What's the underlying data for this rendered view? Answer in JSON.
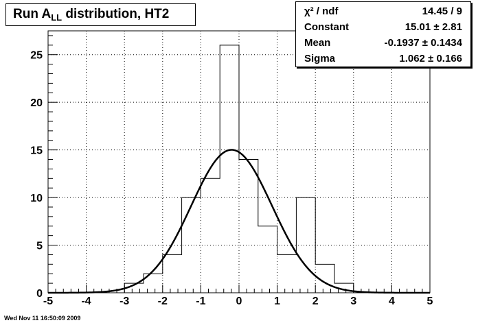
{
  "title": {
    "prefix": "Run A",
    "sub": "LL",
    "suffix": " distribution, HT2"
  },
  "stats": [
    {
      "label": "χ² / ndf",
      "value": "14.45 / 9"
    },
    {
      "label": "Constant",
      "value": "15.01 ± 2.81"
    },
    {
      "label": "Mean",
      "value": "-0.1937 ± 0.1434"
    },
    {
      "label": "Sigma",
      "value": "1.062 ± 0.166"
    }
  ],
  "footer": "Wed Nov 11 16:50:09 2009",
  "chart_data": {
    "type": "bar",
    "xlim": [
      -5,
      5
    ],
    "ylim": [
      0,
      27.5
    ],
    "x_ticks": [
      -5,
      -4,
      -3,
      -2,
      -1,
      0,
      1,
      2,
      3,
      4,
      5
    ],
    "y_ticks": [
      0,
      5,
      10,
      15,
      20,
      25
    ],
    "grid": true,
    "bin_width": 0.5,
    "bin_edges": [
      -5,
      -4.5,
      -4,
      -3.5,
      -3,
      -2.5,
      -2,
      -1.5,
      -1,
      -0.5,
      0,
      0.5,
      1,
      1.5,
      2,
      2.5,
      3,
      3.5,
      4,
      4.5,
      5
    ],
    "values": [
      0,
      0,
      0,
      0,
      1,
      2,
      4,
      10,
      12,
      26,
      14,
      7,
      4,
      10,
      3,
      1,
      0,
      0,
      0,
      0
    ],
    "fit": {
      "function": "gaus",
      "constant": 15.01,
      "mean": -0.1937,
      "sigma": 1.062
    },
    "colors": {
      "histogram": "#000000",
      "fit": "#000000",
      "grid": "#000000"
    }
  }
}
